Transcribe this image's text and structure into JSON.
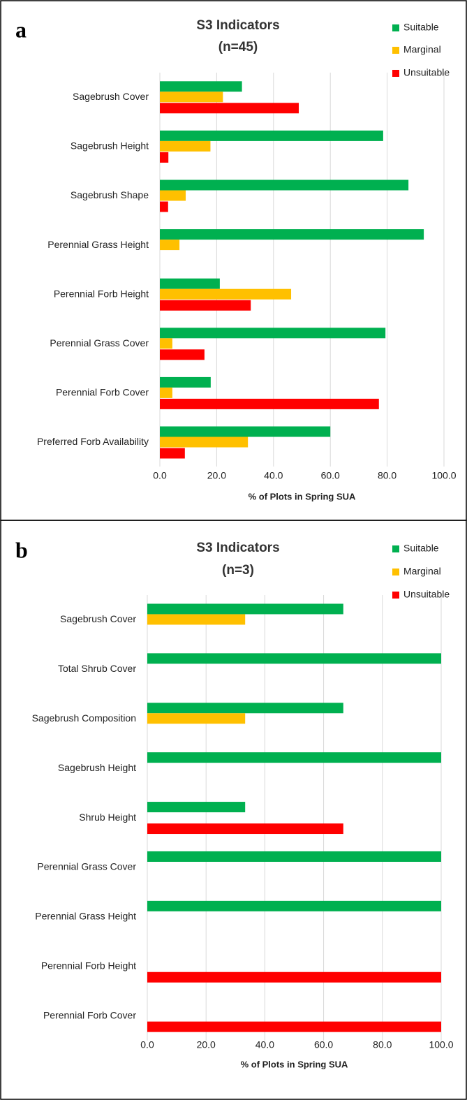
{
  "chart_data": [
    {
      "type": "bar",
      "orientation": "horizontal",
      "panel_label": "a",
      "title": "S3 Indicators",
      "subtitle": "(n=45)",
      "x_label": "% of Plots in Spring SUA",
      "categories": [
        "Sagebrush Cover",
        "Sagebrush Height",
        "Sagebrush Shape",
        "Perennial Grass Height",
        "Perennial Forb Height",
        "Perennial Grass Cover",
        "Perennial Forb Cover",
        "Preferred Forb Availability"
      ],
      "series": [
        {
          "name": "Suitable",
          "color": "#00b050",
          "values": [
            28.9,
            78.6,
            87.5,
            92.9,
            21.1,
            79.4,
            17.9,
            60.0
          ]
        },
        {
          "name": "Marginal",
          "color": "#ffc000",
          "values": [
            22.2,
            17.8,
            9.1,
            6.9,
            46.2,
            4.4,
            4.4,
            31.0
          ]
        },
        {
          "name": "Unsuitable",
          "color": "#ff0000",
          "values": [
            48.9,
            3.0,
            2.9,
            0,
            32.0,
            15.7,
            77.1,
            8.8
          ]
        }
      ],
      "xlim": [
        0,
        100
      ],
      "xticks": [
        {
          "value": 0,
          "label": "0.0"
        },
        {
          "value": 20,
          "label": "20.0"
        },
        {
          "value": 40,
          "label": "40.0"
        },
        {
          "value": 60,
          "label": "60.0"
        },
        {
          "value": 80,
          "label": "80.0"
        },
        {
          "value": 100,
          "label": "100.0"
        }
      ],
      "grid": true,
      "legend": "top-right"
    },
    {
      "type": "bar",
      "orientation": "horizontal",
      "panel_label": "b",
      "title": "S3 Indicators",
      "subtitle": "(n=3)",
      "x_label": "% of Plots in Spring SUA",
      "categories": [
        "Sagebrush Cover",
        "Total Shrub Cover",
        "Sagebrush Composition",
        "Sagebrush Height",
        "Shrub Height",
        "Perennial Grass Cover",
        "Perennial Grass Height",
        "Perennial Forb Height",
        "Perennial Forb Cover"
      ],
      "series": [
        {
          "name": "Suitable",
          "color": "#00b050",
          "values": [
            66.7,
            100,
            66.7,
            100,
            33.3,
            100,
            100,
            0,
            0
          ]
        },
        {
          "name": "Marginal",
          "color": "#ffc000",
          "values": [
            33.3,
            0,
            33.3,
            0,
            0,
            0,
            0,
            0,
            0
          ]
        },
        {
          "name": "Unsuitable",
          "color": "#ff0000",
          "values": [
            0,
            0,
            0,
            0,
            66.7,
            0,
            0,
            100,
            100
          ]
        }
      ],
      "xlim": [
        0,
        100
      ],
      "xticks": [
        {
          "value": 0,
          "label": "0.0"
        },
        {
          "value": 20,
          "label": "20.0"
        },
        {
          "value": 40,
          "label": "40.0"
        },
        {
          "value": 60,
          "label": "60.0"
        },
        {
          "value": 80,
          "label": "80.0"
        },
        {
          "value": 100,
          "label": "100.0"
        }
      ],
      "grid": true,
      "legend": "top-right"
    }
  ]
}
